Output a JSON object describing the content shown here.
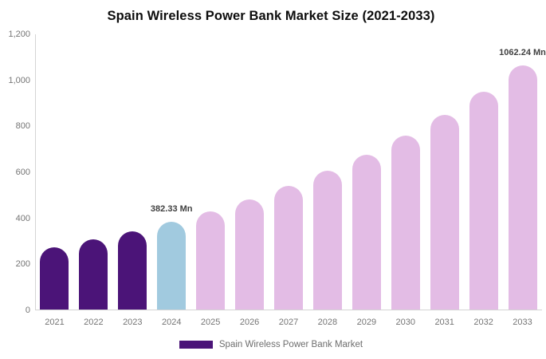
{
  "chart_data": {
    "type": "bar",
    "title": "Spain Wireless Power Bank Market Size (2021-2033)",
    "unit": "Mn",
    "categories": [
      "2021",
      "2022",
      "2023",
      "2024",
      "2025",
      "2026",
      "2027",
      "2028",
      "2029",
      "2030",
      "2031",
      "2032",
      "2033"
    ],
    "values": [
      272,
      305,
      341,
      382.33,
      428,
      480,
      538,
      602,
      674,
      755,
      846,
      948,
      1062.24
    ],
    "bar_colors": [
      "#4B1478",
      "#4B1478",
      "#4B1478",
      "#A1CADF",
      "#E3BCE5",
      "#E3BCE5",
      "#E3BCE5",
      "#E3BCE5",
      "#E3BCE5",
      "#E3BCE5",
      "#E3BCE5",
      "#E3BCE5",
      "#E3BCE5"
    ],
    "data_labels": [
      {
        "category": "2024",
        "text": "382.33 Mn"
      },
      {
        "category": "2033",
        "text": "1062.24 Mn"
      }
    ],
    "ylim": [
      0,
      1200
    ],
    "y_tick_values": [
      1200,
      1000,
      800,
      600,
      400,
      200,
      0
    ],
    "y_tick_labels": [
      "1,200",
      "1,000",
      "800",
      "600",
      "400",
      "200",
      "0"
    ],
    "grid": false,
    "legend_position": "bottom",
    "legend": [
      {
        "label": "Spain Wireless Power Bank Market",
        "color": "#4B1478"
      }
    ]
  },
  "colors": {
    "historical_bar": "#4B1478",
    "base_year_bar": "#A1CADF",
    "forecast_bar": "#E3BCE5",
    "axis_line": "#d4d4d4",
    "tick_text": "#757575",
    "value_label_text": "#404040",
    "legend_text": "#6e6e6e",
    "title_text": "#0d0d0d",
    "background": "#ffffff"
  }
}
